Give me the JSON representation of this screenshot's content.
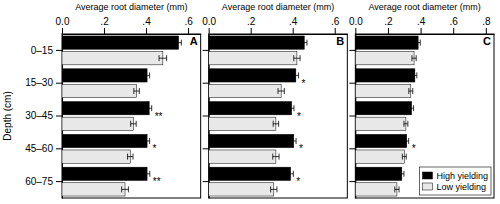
{
  "chart_data": [
    {
      "type": "bar",
      "orientation": "horizontal",
      "title": "A",
      "xlabel": "Average root diameter (mm)",
      "ylabel": "Depth (cm)",
      "categories": [
        "0–15",
        "15–30",
        "30–45",
        "45–60",
        "60–75"
      ],
      "series": [
        {
          "name": "High yielding",
          "color": "#000000",
          "values": [
            0.555,
            0.405,
            0.415,
            0.405,
            0.405
          ],
          "errors": [
            0.013,
            0.012,
            0.012,
            0.012,
            0.013
          ]
        },
        {
          "name": "Low yielding",
          "color": "#e8e8e8",
          "values": [
            0.48,
            0.355,
            0.34,
            0.325,
            0.3
          ],
          "errors": [
            0.018,
            0.013,
            0.013,
            0.013,
            0.016
          ]
        }
      ],
      "xlim": [
        0.0,
        0.66
      ],
      "xticks": [
        {
          "value": 0.0,
          "label": "0.0"
        },
        {
          "value": 0.2,
          "label": ".2"
        },
        {
          "value": 0.4,
          "label": ".4"
        },
        {
          "value": 0.6,
          "label": ".6"
        }
      ],
      "annotations": [
        {
          "category": "30–45",
          "text": "**"
        },
        {
          "category": "45–60",
          "text": "*"
        },
        {
          "category": "60–75",
          "text": "**"
        }
      ]
    },
    {
      "type": "bar",
      "orientation": "horizontal",
      "title": "B",
      "xlabel": "Average root diameter (mm)",
      "categories": [
        "0–15",
        "15–30",
        "30–45",
        "45–60",
        "60–75"
      ],
      "series": [
        {
          "name": "High yielding",
          "color": "#000000",
          "values": [
            0.455,
            0.415,
            0.395,
            0.405,
            0.39
          ],
          "errors": [
            0.013,
            0.013,
            0.011,
            0.011,
            0.013
          ]
        },
        {
          "name": "Low yielding",
          "color": "#e8e8e8",
          "values": [
            0.42,
            0.345,
            0.32,
            0.32,
            0.31
          ],
          "errors": [
            0.015,
            0.015,
            0.013,
            0.015,
            0.015
          ]
        }
      ],
      "xlim": [
        0.0,
        0.66
      ],
      "xticks": [
        {
          "value": 0.0,
          "label": "0.0"
        },
        {
          "value": 0.2,
          "label": ".2"
        },
        {
          "value": 0.4,
          "label": ".4"
        },
        {
          "value": 0.6,
          "label": ".6"
        }
      ],
      "tick_labels": "x",
      "annotations": [
        {
          "category": "15–30",
          "text": "*"
        },
        {
          "category": "30–45",
          "text": "*"
        },
        {
          "category": "45–60",
          "text": "*"
        },
        {
          "category": "60–75",
          "text": "*"
        }
      ]
    },
    {
      "type": "bar",
      "orientation": "horizontal",
      "title": "C",
      "xlabel": "Average root diameter (mm)",
      "categories": [
        "0–15",
        "15–30",
        "30–45",
        "45–60",
        "60–75"
      ],
      "series": [
        {
          "name": "High yielding",
          "color": "#000000",
          "values": [
            0.385,
            0.365,
            0.345,
            0.315,
            0.285
          ],
          "errors": [
            0.013,
            0.012,
            0.012,
            0.012,
            0.013
          ]
        },
        {
          "name": "Low yielding",
          "color": "#e8e8e8",
          "values": [
            0.36,
            0.34,
            0.31,
            0.3,
            0.255
          ],
          "errors": [
            0.013,
            0.012,
            0.012,
            0.012,
            0.013
          ]
        }
      ],
      "xlim": [
        0.0,
        0.85
      ],
      "xticks": [
        {
          "value": 0.0,
          "label": "0.0"
        },
        {
          "value": 0.2,
          "label": ".2"
        },
        {
          "value": 0.4,
          "label": ".4"
        },
        {
          "value": 0.6,
          "label": ".6"
        },
        {
          "value": 0.8,
          "label": ".8"
        }
      ],
      "tick_labels": "x",
      "legend": "lower right",
      "annotations": [
        {
          "category": "45–60",
          "text": "*"
        }
      ]
    }
  ]
}
